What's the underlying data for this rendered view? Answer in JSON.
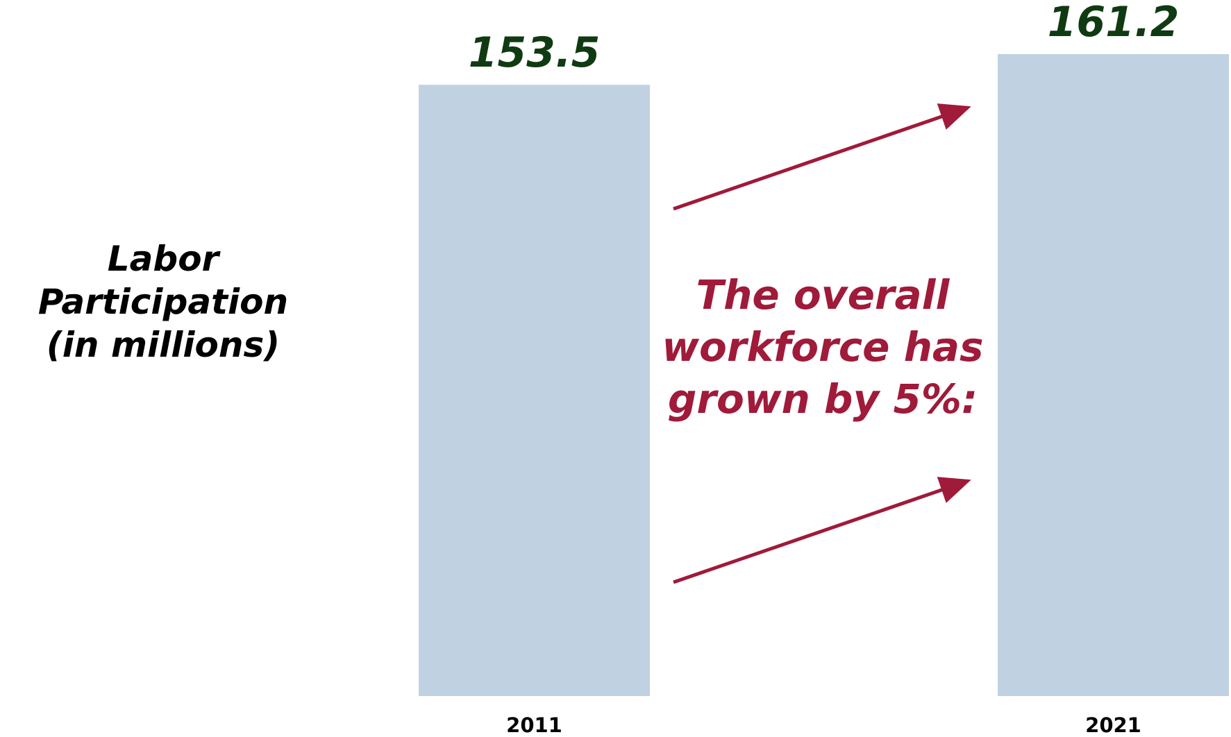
{
  "chart_data": {
    "type": "bar",
    "categories": [
      "2011",
      "2021"
    ],
    "values": [
      153.5,
      161.2
    ],
    "data_labels": [
      "153.5",
      "161.2"
    ],
    "ylabel_lines": [
      "Labor Participation",
      "(in millions)"
    ],
    "annotation_lines": [
      "The overall",
      "workforce has",
      "grown by 5%:"
    ],
    "bar_color": "#c0d2e2",
    "value_label_color": "#0f3a12",
    "annotation_color": "#a01a3a",
    "legend": "none",
    "grid": false
  }
}
